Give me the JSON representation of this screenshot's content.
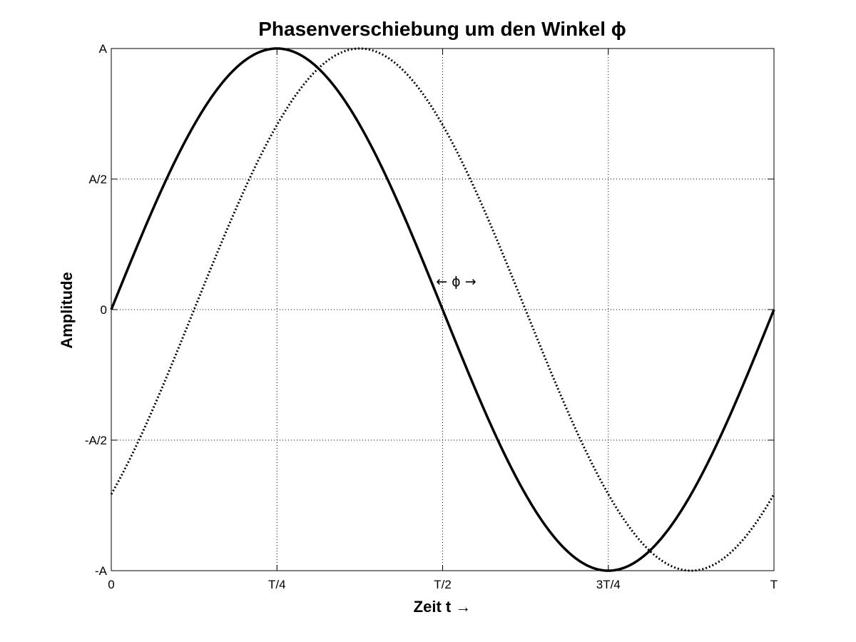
{
  "chart_data": {
    "type": "line",
    "title": "Phasenverschiebung um den Winkel ϕ",
    "xlabel": "Zeit t →",
    "ylabel": "Amplitude",
    "xlim": [
      0,
      1
    ],
    "ylim": [
      -1,
      1
    ],
    "grid": true,
    "x_ticks": [
      {
        "value": 0,
        "label": "0"
      },
      {
        "value": 0.25,
        "label": "T/4"
      },
      {
        "value": 0.5,
        "label": "T/2"
      },
      {
        "value": 0.75,
        "label": "3T/4"
      },
      {
        "value": 1,
        "label": "T"
      }
    ],
    "y_ticks": [
      {
        "value": -1,
        "label": "-A"
      },
      {
        "value": -0.5,
        "label": "-A/2"
      },
      {
        "value": 0,
        "label": "0"
      },
      {
        "value": 0.5,
        "label": "A/2"
      },
      {
        "value": 1,
        "label": "A"
      }
    ],
    "series": [
      {
        "style": "solid",
        "amplitude": 1,
        "phase_shift_period_fraction": 0,
        "x": [
          0,
          0.05,
          0.1,
          0.15,
          0.2,
          0.25,
          0.3,
          0.35,
          0.4,
          0.45,
          0.5,
          0.55,
          0.6,
          0.65,
          0.7,
          0.75,
          0.8,
          0.85,
          0.9,
          0.95,
          1
        ],
        "values": [
          0,
          0.309,
          0.588,
          0.809,
          0.951,
          1,
          0.951,
          0.809,
          0.588,
          0.309,
          0,
          -0.309,
          -0.588,
          -0.809,
          -0.951,
          -1,
          -0.951,
          -0.809,
          -0.588,
          -0.309,
          0
        ]
      },
      {
        "style": "dotted",
        "amplitude": 1,
        "phase_shift_period_fraction": 0.125,
        "x": [
          0,
          0.05,
          0.1,
          0.15,
          0.2,
          0.25,
          0.3,
          0.35,
          0.4,
          0.45,
          0.5,
          0.55,
          0.6,
          0.65,
          0.7,
          0.75,
          0.8,
          0.85,
          0.9,
          0.95,
          1
        ],
        "values": [
          -0.707,
          -0.454,
          -0.156,
          0.156,
          0.454,
          0.707,
          0.891,
          0.988,
          0.988,
          0.891,
          0.707,
          0.454,
          0.156,
          -0.156,
          -0.454,
          -0.707,
          -0.891,
          -0.988,
          -0.988,
          -0.891,
          -0.707
        ]
      }
    ],
    "annotations": [
      {
        "text": "← ϕ →",
        "x": 0.49,
        "y": 0.09
      }
    ]
  }
}
